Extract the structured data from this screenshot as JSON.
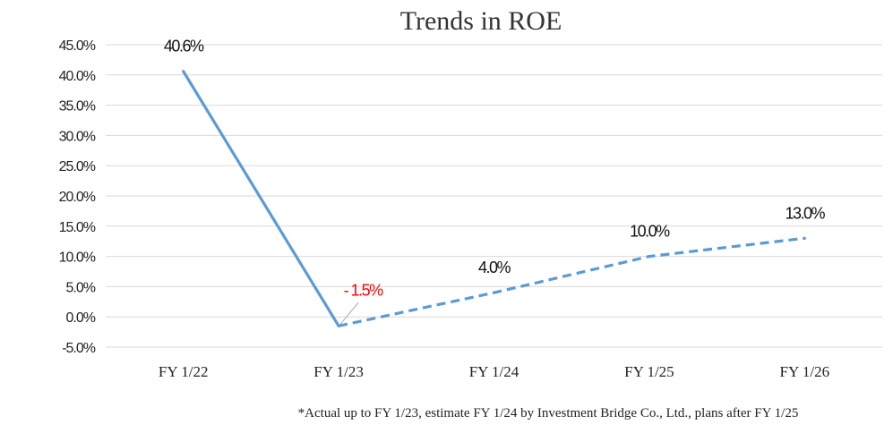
{
  "chart_data": {
    "type": "line",
    "title": "Trends in ROE",
    "categories": [
      "FY 1/22",
      "FY 1/23",
      "FY 1/24",
      "FY 1/25",
      "FY 1/26"
    ],
    "series": [
      {
        "values": [
          40.6,
          -1.5,
          4.0,
          10.0,
          13.0
        ],
        "data_labels": [
          "40.6%",
          "- 1.5%",
          "4.0%",
          "10.0%",
          "13.0%"
        ],
        "color": "#5b9bd5",
        "solid_through_index": 1,
        "dashed_from_index": 1
      }
    ],
    "negative_label_color": "#ff0000",
    "ylim": [
      -5,
      45
    ],
    "yticks": [
      -5,
      0,
      5,
      10,
      15,
      20,
      25,
      30,
      35,
      40,
      45
    ],
    "ytick_labels": [
      "-5.0%",
      "0.0%",
      "5.0%",
      "10.0%",
      "15.0%",
      "20.0%",
      "25.0%",
      "30.0%",
      "35.0%",
      "40.0%",
      "45.0%"
    ],
    "grid": true,
    "footnote": "*Actual up to FY 1/23, estimate FY 1/24 by Investment Bridge Co., Ltd., plans after FY 1/25"
  }
}
